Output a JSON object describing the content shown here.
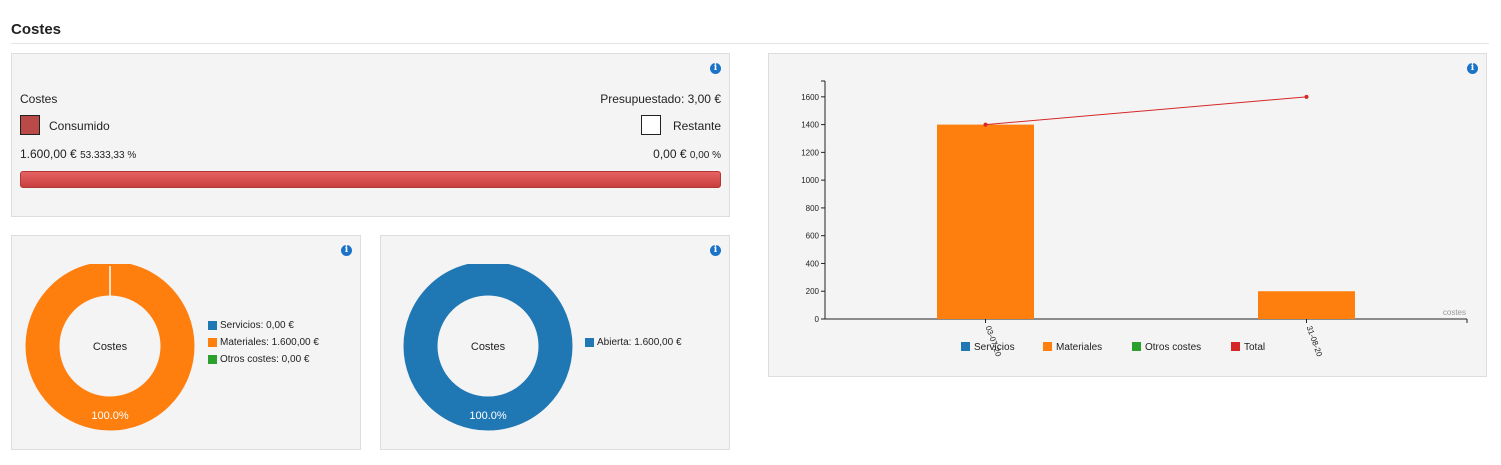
{
  "section": {
    "title": "Costes"
  },
  "budget": {
    "label": "Costes",
    "budgeted": "Presupuestado: 3,00 €",
    "consumed_label": "Consumido",
    "remaining_label": "Restante",
    "consumed_value": "1.600,00 €",
    "consumed_pct": "53.333,33 %",
    "remaining_value": "0,00 €",
    "remaining_pct": "0,00 %",
    "progress_fraction": 1.0,
    "consumed_color": "#b94a48"
  },
  "donut_type": {
    "center_label": "Costes",
    "slice_label": "100.0%",
    "legend": [
      {
        "label": "Servicios: 0,00 €",
        "color": "#1f77b4"
      },
      {
        "label": "Materiales: 1.600,00 €",
        "color": "#ff7f0e"
      },
      {
        "label": "Otros costes: 0,00 €",
        "color": "#2ca02c"
      }
    ]
  },
  "donut_status": {
    "center_label": "Costes",
    "slice_label": "100.0%",
    "legend": [
      {
        "label": "Abierta: 1.600,00 €",
        "color": "#1f77b4"
      }
    ]
  },
  "chart_data": {
    "type": "bar",
    "categories": [
      "03-07-20",
      "31-08-20"
    ],
    "series": [
      {
        "name": "Servicios",
        "type": "bar",
        "color": "#1f77b4",
        "values": [
          0,
          0
        ]
      },
      {
        "name": "Materiales",
        "type": "bar",
        "color": "#ff7f0e",
        "values": [
          1400,
          200
        ]
      },
      {
        "name": "Otros costes",
        "type": "bar",
        "color": "#2ca02c",
        "values": [
          0,
          0
        ]
      },
      {
        "name": "Total",
        "type": "line",
        "color": "#d62728",
        "values": [
          1400,
          1600
        ]
      }
    ],
    "yticks": [
      0,
      200,
      400,
      600,
      800,
      1000,
      1200,
      1400,
      1600
    ],
    "ylim": [
      0,
      1750
    ],
    "corner_label": "costes",
    "legend_position": "bottom"
  }
}
